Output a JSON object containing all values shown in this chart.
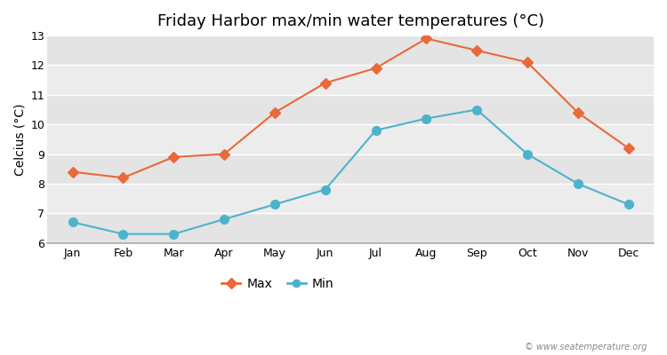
{
  "title": "Friday Harbor max/min water temperatures (°C)",
  "ylabel": "Celcius (°C)",
  "months": [
    "Jan",
    "Feb",
    "Mar",
    "Apr",
    "May",
    "Jun",
    "Jul",
    "Aug",
    "Sep",
    "Oct",
    "Nov",
    "Dec"
  ],
  "max_values": [
    8.4,
    8.2,
    8.9,
    9.0,
    10.4,
    11.4,
    11.9,
    12.9,
    12.5,
    12.1,
    10.4,
    9.2
  ],
  "min_values": [
    6.7,
    6.3,
    6.3,
    6.8,
    7.3,
    7.8,
    9.8,
    10.2,
    10.5,
    9.0,
    8.0,
    7.3
  ],
  "max_color": "#e8693a",
  "min_color": "#4db3cc",
  "ylim": [
    6.0,
    13.0
  ],
  "yticks": [
    6,
    7,
    8,
    9,
    10,
    11,
    12,
    13
  ],
  "bg_color": "#ffffff",
  "plot_bg_color": "#f0f0f0",
  "stripe_color_dark": "#e4e4e4",
  "stripe_color_light": "#ececec",
  "grid_color": "#ffffff",
  "title_fontsize": 13,
  "axis_label_fontsize": 10,
  "tick_fontsize": 9,
  "legend_label_max": "Max",
  "legend_label_min": "Min",
  "watermark": "© www.seatemperature.org"
}
